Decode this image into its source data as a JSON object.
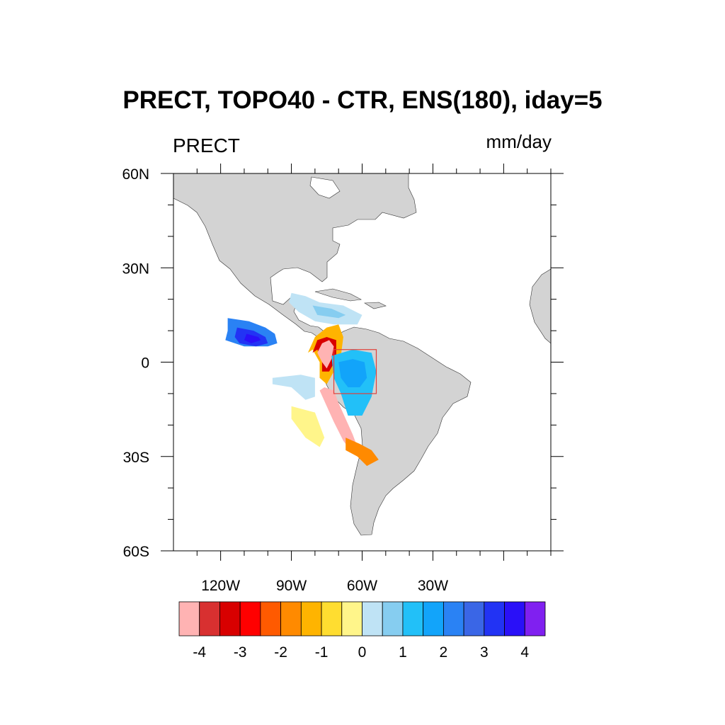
{
  "title": "PRECT, TOPO40 - CTR, ENS(180), iday=5",
  "left_string": "PRECT",
  "right_string": "mm/day",
  "map": {
    "projection": "cylindrical-equidistant",
    "lon_range": [
      -140,
      20
    ],
    "lat_range": [
      -60,
      60
    ],
    "land_color": "#d3d3d3",
    "ocean_color": "#ffffff",
    "lat_tick_labels": [
      "60N",
      "30N",
      "0",
      "30S",
      "60S"
    ],
    "lon_tick_labels": [
      "120W",
      "90W",
      "60W",
      "30W"
    ]
  },
  "box_region": {
    "lon": [
      -72,
      -54
    ],
    "lat": [
      -10,
      4
    ],
    "color": "#e0403a"
  },
  "colorbar": {
    "colors": [
      "#ffb3b3",
      "#d83030",
      "#d80000",
      "#ff0000",
      "#ff5a00",
      "#ff8a00",
      "#ffb400",
      "#ffdd30",
      "#fff58a",
      "#bfe3f5",
      "#86cdf0",
      "#22c0f8",
      "#12a4fa",
      "#2a82f4",
      "#3a66e6",
      "#2233f4",
      "#2a10f8",
      "#8020f0"
    ],
    "labels": [
      "-4",
      "-3",
      "-2",
      "-1",
      "0",
      "1",
      "2",
      "3",
      "4"
    ]
  },
  "features": [
    {
      "name": "east-pacific-wet-anomaly",
      "polygon": [
        [
          -117,
          14
        ],
        [
          -108,
          13
        ],
        [
          -101,
          11
        ],
        [
          -97,
          9
        ],
        [
          -96,
          6
        ],
        [
          -100,
          5
        ],
        [
          -110,
          5
        ],
        [
          -118,
          7
        ],
        [
          -117,
          10
        ]
      ],
      "color": "#2a82f4"
    },
    {
      "name": "east-pacific-wet-core",
      "polygon": [
        [
          -113,
          11
        ],
        [
          -106,
          10
        ],
        [
          -101,
          8
        ],
        [
          -100,
          6
        ],
        [
          -105,
          5
        ],
        [
          -112,
          6
        ],
        [
          -114,
          8
        ]
      ],
      "color": "#2233f4"
    },
    {
      "name": "east-pacific-wet-center",
      "polygon": [
        [
          -109,
          9
        ],
        [
          -104,
          8
        ],
        [
          -103,
          7
        ],
        [
          -107,
          6
        ],
        [
          -110,
          7
        ]
      ],
      "color": "#2a10f8"
    },
    {
      "name": "caribbean-wet-anomaly",
      "polygon": [
        [
          -90,
          22
        ],
        [
          -84,
          21
        ],
        [
          -78,
          19
        ],
        [
          -68,
          18
        ],
        [
          -60,
          15
        ],
        [
          -62,
          12
        ],
        [
          -72,
          12
        ],
        [
          -80,
          13
        ],
        [
          -87,
          16
        ],
        [
          -91,
          19
        ]
      ],
      "color": "#bfe3f5"
    },
    {
      "name": "caribbean-wet-patch",
      "polygon": [
        [
          -81,
          18
        ],
        [
          -73,
          17
        ],
        [
          -67,
          15
        ],
        [
          -70,
          14
        ],
        [
          -79,
          15
        ]
      ],
      "color": "#86cdf0"
    },
    {
      "name": "colombia-dry-outer",
      "polygon": [
        [
          -80,
          8
        ],
        [
          -75,
          11
        ],
        [
          -70,
          12
        ],
        [
          -68,
          8
        ],
        [
          -69,
          2
        ],
        [
          -72,
          -3
        ],
        [
          -75,
          -7
        ],
        [
          -78,
          -5
        ],
        [
          -78,
          0
        ],
        [
          -81,
          4
        ],
        [
          -83,
          3
        ]
      ],
      "color": "#ffb400"
    },
    {
      "name": "colombia-dry-ring",
      "polygon": [
        [
          -79,
          7
        ],
        [
          -75,
          8
        ],
        [
          -71,
          7
        ],
        [
          -71,
          1
        ],
        [
          -74,
          -3
        ],
        [
          -77,
          -3
        ],
        [
          -77,
          1
        ],
        [
          -79,
          4
        ],
        [
          -81,
          3
        ]
      ],
      "color": "#d80000"
    },
    {
      "name": "colombia-dry-core",
      "polygon": [
        [
          -77,
          6
        ],
        [
          -74,
          7
        ],
        [
          -72,
          5
        ],
        [
          -73,
          1
        ],
        [
          -75,
          -2
        ],
        [
          -77,
          0
        ],
        [
          -79,
          3
        ]
      ],
      "color": "#ffb3b3"
    },
    {
      "name": "peru-dry-strip",
      "polygon": [
        [
          -76,
          -8
        ],
        [
          -72,
          -9
        ],
        [
          -70,
          -13
        ],
        [
          -67,
          -18
        ],
        [
          -64,
          -23
        ],
        [
          -62,
          -27
        ],
        [
          -65,
          -28
        ],
        [
          -68,
          -25
        ],
        [
          -72,
          -19
        ],
        [
          -75,
          -14
        ],
        [
          -78,
          -9
        ]
      ],
      "color": "#ffb3b3"
    },
    {
      "name": "southeast-dry-anomaly",
      "polygon": [
        [
          -67,
          -24
        ],
        [
          -61,
          -26
        ],
        [
          -56,
          -28
        ],
        [
          -53,
          -31
        ],
        [
          -58,
          -33
        ],
        [
          -62,
          -30
        ],
        [
          -67,
          -28
        ]
      ],
      "color": "#ff8a00"
    },
    {
      "name": "amazon-wet-anomaly",
      "polygon": [
        [
          -73,
          2
        ],
        [
          -64,
          4
        ],
        [
          -56,
          3
        ],
        [
          -54,
          -3
        ],
        [
          -56,
          -11
        ],
        [
          -60,
          -17
        ],
        [
          -66,
          -17
        ],
        [
          -69,
          -10
        ],
        [
          -72,
          -5
        ]
      ],
      "color": "#22c0f8"
    },
    {
      "name": "amazon-wet-core",
      "polygon": [
        [
          -70,
          0
        ],
        [
          -64,
          1
        ],
        [
          -59,
          0
        ],
        [
          -58,
          -5
        ],
        [
          -61,
          -8
        ],
        [
          -66,
          -8
        ],
        [
          -69,
          -5
        ]
      ],
      "color": "#12a4fa"
    },
    {
      "name": "pacific-wet-streak",
      "polygon": [
        [
          -98,
          -5
        ],
        [
          -86,
          -4
        ],
        [
          -80,
          -5
        ],
        [
          -80,
          -11
        ],
        [
          -84,
          -12
        ],
        [
          -90,
          -8
        ],
        [
          -98,
          -7
        ]
      ],
      "color": "#bfe3f5"
    },
    {
      "name": "pacific-dry-streak",
      "polygon": [
        [
          -90,
          -14
        ],
        [
          -80,
          -16
        ],
        [
          -76,
          -24
        ],
        [
          -78,
          -27
        ],
        [
          -84,
          -24
        ],
        [
          -90,
          -18
        ]
      ],
      "color": "#fff58a"
    }
  ]
}
